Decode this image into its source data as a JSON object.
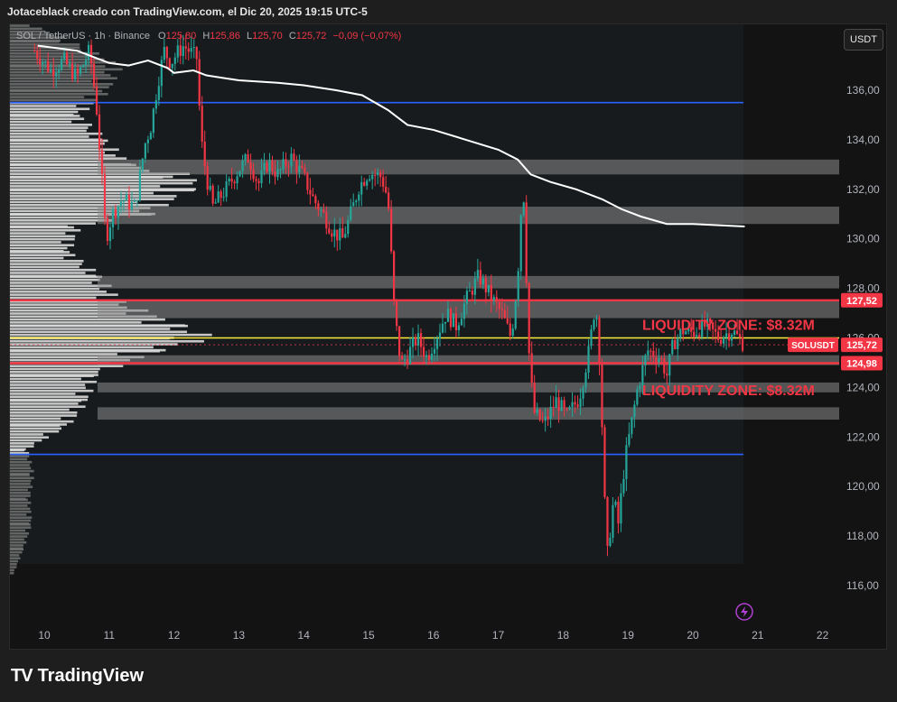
{
  "header": {
    "caption": "Jotaceblack creado con TradingView.com, el Dic 20, 2025 19:15 UTC-5"
  },
  "legend": {
    "symbol": "SOL / TetherUS · 1h · Binance",
    "open_label": "O",
    "open": "125,80",
    "high_label": "H",
    "high": "125,86",
    "low_label": "L",
    "low": "125,70",
    "close_label": "C",
    "close": "125,72",
    "change": "−0,09 (−0,07%)"
  },
  "currency_button": "USDT",
  "footer": {
    "brand": "TradingView",
    "logo": "TV"
  },
  "colors": {
    "up": "#26a69a",
    "down": "#f23645",
    "level_red": "#f23645",
    "level_blue": "#2962ff",
    "poc": "#ffeb3b",
    "vwap": "#ffffff",
    "zone": "#8a8a8a",
    "accent_badge": "#f23645"
  },
  "icons": {
    "alert": "lightning-icon"
  },
  "chart_data": {
    "type": "candlestick",
    "title": "",
    "xlabel": "",
    "ylabel": "",
    "x_ticks": [
      "10",
      "11",
      "12",
      "13",
      "14",
      "15",
      "16",
      "17",
      "18",
      "19",
      "20",
      "21",
      "22"
    ],
    "x_range": [
      9.7,
      22.3
    ],
    "y_ticks": [
      "116,00",
      "118,00",
      "120,00",
      "122,00",
      "124,00",
      "126,00",
      "128,00",
      "130,00",
      "132,00",
      "134,00",
      "136,00"
    ],
    "ylim": [
      114.6,
      138.4
    ],
    "price_path": [
      [
        9.85,
        137.6
      ],
      [
        10.1,
        136.8
      ],
      [
        10.3,
        137.2
      ],
      [
        10.5,
        136.5
      ],
      [
        10.7,
        137.6
      ],
      [
        10.8,
        135.5
      ],
      [
        10.9,
        132.0
      ],
      [
        10.95,
        130.0
      ],
      [
        11.05,
        131.0
      ],
      [
        11.2,
        131.6
      ],
      [
        11.4,
        131.3
      ],
      [
        11.55,
        133.8
      ],
      [
        11.65,
        134.6
      ],
      [
        11.75,
        136.3
      ],
      [
        11.85,
        137.6
      ],
      [
        11.95,
        137.1
      ],
      [
        12.05,
        137.5
      ],
      [
        12.15,
        137.8
      ],
      [
        12.35,
        137.3
      ],
      [
        12.42,
        134.0
      ],
      [
        12.5,
        132.5
      ],
      [
        12.6,
        131.3
      ],
      [
        12.8,
        132.0
      ],
      [
        13.0,
        132.8
      ],
      [
        13.15,
        133.3
      ],
      [
        13.3,
        132.2
      ],
      [
        13.45,
        133.1
      ],
      [
        13.6,
        132.6
      ],
      [
        13.8,
        133.3
      ],
      [
        14.0,
        132.5
      ],
      [
        14.15,
        131.6
      ],
      [
        14.3,
        131.0
      ],
      [
        14.45,
        130.3
      ],
      [
        14.6,
        130.0
      ],
      [
        14.75,
        131.2
      ],
      [
        14.85,
        132.1
      ],
      [
        15.0,
        132.7
      ],
      [
        15.2,
        132.5
      ],
      [
        15.3,
        131.6
      ],
      [
        15.4,
        127.0
      ],
      [
        15.5,
        124.9
      ],
      [
        15.6,
        125.3
      ],
      [
        15.75,
        126.0
      ],
      [
        15.9,
        125.2
      ],
      [
        16.05,
        126.1
      ],
      [
        16.2,
        127.0
      ],
      [
        16.35,
        126.5
      ],
      [
        16.5,
        127.5
      ],
      [
        16.7,
        128.5
      ],
      [
        16.9,
        127.6
      ],
      [
        17.05,
        127.0
      ],
      [
        17.2,
        126.0
      ],
      [
        17.3,
        128.5
      ],
      [
        17.38,
        132.6
      ],
      [
        17.42,
        129.5
      ],
      [
        17.48,
        125.0
      ],
      [
        17.55,
        123.0
      ],
      [
        17.7,
        122.5
      ],
      [
        17.9,
        123.5
      ],
      [
        18.05,
        122.8
      ],
      [
        18.25,
        123.6
      ],
      [
        18.4,
        125.5
      ],
      [
        18.5,
        127.5
      ],
      [
        18.58,
        124.5
      ],
      [
        18.62,
        120.5
      ],
      [
        18.68,
        117.2
      ],
      [
        18.78,
        119.5
      ],
      [
        18.85,
        118.5
      ],
      [
        18.95,
        121.0
      ],
      [
        19.05,
        122.5
      ],
      [
        19.15,
        124.0
      ],
      [
        19.3,
        125.5
      ],
      [
        19.5,
        125.2
      ],
      [
        19.6,
        124.5
      ],
      [
        19.7,
        125.8
      ],
      [
        19.85,
        126.3
      ],
      [
        20.0,
        126.2
      ],
      [
        20.2,
        126.5
      ],
      [
        20.4,
        126.0
      ],
      [
        20.6,
        126.3
      ],
      [
        20.8,
        125.72
      ]
    ],
    "vwap": [
      [
        9.9,
        137.8
      ],
      [
        10.5,
        137.6
      ],
      [
        10.8,
        137.3
      ],
      [
        11.0,
        137.1
      ],
      [
        11.3,
        137.0
      ],
      [
        11.6,
        137.2
      ],
      [
        11.9,
        136.9
      ],
      [
        12.0,
        136.7
      ],
      [
        12.3,
        136.8
      ],
      [
        12.5,
        136.6
      ],
      [
        13.0,
        136.4
      ],
      [
        13.6,
        136.3
      ],
      [
        14.0,
        136.2
      ],
      [
        14.5,
        136.0
      ],
      [
        14.9,
        135.8
      ],
      [
        15.3,
        135.2
      ],
      [
        15.6,
        134.6
      ],
      [
        16.0,
        134.4
      ],
      [
        16.5,
        134.0
      ],
      [
        17.0,
        133.6
      ],
      [
        17.3,
        133.2
      ],
      [
        17.5,
        132.6
      ],
      [
        17.8,
        132.3
      ],
      [
        18.2,
        132.0
      ],
      [
        18.6,
        131.6
      ],
      [
        18.9,
        131.2
      ],
      [
        19.2,
        130.9
      ],
      [
        19.6,
        130.6
      ],
      [
        20.0,
        130.6
      ],
      [
        20.4,
        130.55
      ],
      [
        20.8,
        130.5
      ]
    ],
    "levels": [
      {
        "price": 127.52,
        "label": "127,52",
        "color": "#f23645"
      },
      {
        "price": 124.98,
        "label": "124,98",
        "color": "#f23645"
      },
      {
        "price": 125.72,
        "label": "125,72",
        "color": "#f23645"
      }
    ],
    "last_price_tag": "SOLUSDT",
    "blue_lines": [
      135.5,
      121.3
    ],
    "poc_price": 126.0,
    "zones": [
      [
        132.6,
        133.2
      ],
      [
        130.6,
        131.3
      ],
      [
        128.0,
        128.5
      ],
      [
        126.8,
        127.5
      ],
      [
        124.9,
        125.3
      ],
      [
        123.8,
        124.2
      ],
      [
        122.7,
        123.2
      ]
    ],
    "annotations": [
      {
        "text": "LIQUIDITY ZONE: $8.32M",
        "price": 126.55
      },
      {
        "text": "LIQUIDITY ZONE: $8.32M",
        "price": 123.9
      }
    ],
    "volume_profile": [
      [
        116.5,
        4
      ],
      [
        117.5,
        14
      ],
      [
        118.5,
        22
      ],
      [
        119.5,
        20
      ],
      [
        120.5,
        24
      ],
      [
        121.5,
        18
      ],
      [
        122.5,
        60
      ],
      [
        123.5,
        78
      ],
      [
        124.5,
        86
      ],
      [
        125.5,
        150
      ],
      [
        126.0,
        205
      ],
      [
        126.5,
        170
      ],
      [
        127.5,
        110
      ],
      [
        128.5,
        90
      ],
      [
        129.5,
        60
      ],
      [
        130.5,
        70
      ],
      [
        131.0,
        140
      ],
      [
        132.0,
        180
      ],
      [
        132.5,
        190
      ],
      [
        133.0,
        120
      ],
      [
        134.0,
        95
      ],
      [
        135.0,
        70
      ],
      [
        136.0,
        100
      ],
      [
        137.0,
        110
      ],
      [
        138.0,
        60
      ]
    ],
    "grid": false,
    "legend": "top-left"
  }
}
